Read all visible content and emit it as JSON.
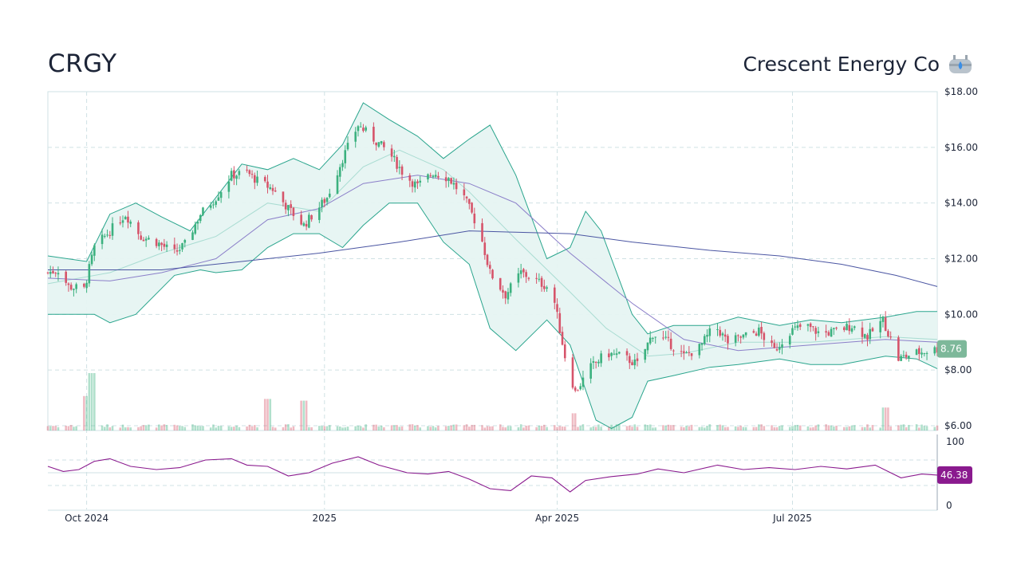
{
  "header": {
    "ticker": "CRGY",
    "company_name": "Crescent Energy Co",
    "company_icon": "oil-tank-flame-icon"
  },
  "colors": {
    "up": "#3cb17f",
    "down": "#d6546a",
    "band_line": "#2aa58d",
    "band_fill": "#e6f4f2",
    "sma_fast": "#a9dcd2",
    "sma_mid": "#8b7fc9",
    "sma_long": "#4a55a2",
    "rsi": "#8a1a8e",
    "grid": "#cfe1e4",
    "last_price_badge": "#7db89a",
    "rsi_badge": "#8a1a8e"
  },
  "chart_data": {
    "type": "candlestick",
    "title": "CRGY",
    "price_axis": {
      "ylim": [
        6,
        18
      ],
      "ticks": [
        "$18.00",
        "$16.00",
        "$14.00",
        "$12.00",
        "$10.00",
        "$8.00",
        "$6.00"
      ],
      "tick_values": [
        18,
        16,
        14,
        12,
        10,
        8,
        6
      ],
      "position": "right"
    },
    "x_axis": {
      "tick_labels": [
        "Oct 2024",
        "2025",
        "Apr 2025",
        "Jul 2025"
      ],
      "tick_dates": [
        "2024-10-01",
        "2025-01-01",
        "2025-04-01",
        "2025-07-01"
      ],
      "xlim": [
        "2024-09-16",
        "2025-08-26"
      ]
    },
    "grid": true,
    "last_price": "8.76",
    "close_path": [
      [
        "2024-09-16",
        11.5
      ],
      [
        "2024-09-20",
        11.6
      ],
      [
        "2024-09-24",
        11.0
      ],
      [
        "2024-09-30",
        10.9
      ],
      [
        "2024-10-04",
        12.4
      ],
      [
        "2024-10-10",
        13.0
      ],
      [
        "2024-10-16",
        13.6
      ],
      [
        "2024-10-22",
        12.8
      ],
      [
        "2024-10-28",
        12.6
      ],
      [
        "2024-11-04",
        12.2
      ],
      [
        "2024-11-08",
        12.5
      ],
      [
        "2024-11-14",
        13.6
      ],
      [
        "2024-11-20",
        14.2
      ],
      [
        "2024-11-26",
        15.0
      ],
      [
        "2024-12-02",
        15.1
      ],
      [
        "2024-12-06",
        14.8
      ],
      [
        "2024-12-12",
        14.5
      ],
      [
        "2024-12-18",
        13.8
      ],
      [
        "2024-12-24",
        13.2
      ],
      [
        "2025-01-02",
        14.2
      ],
      [
        "2025-01-08",
        15.6
      ],
      [
        "2025-01-14",
        16.8
      ],
      [
        "2025-01-20",
        16.3
      ],
      [
        "2025-01-26",
        15.8
      ],
      [
        "2025-02-01",
        15.0
      ],
      [
        "2025-02-06",
        14.6
      ],
      [
        "2025-02-12",
        15.1
      ],
      [
        "2025-02-18",
        14.9
      ],
      [
        "2025-02-24",
        14.2
      ],
      [
        "2025-03-02",
        13.0
      ],
      [
        "2025-03-06",
        11.5
      ],
      [
        "2025-03-12",
        10.7
      ],
      [
        "2025-03-18",
        11.5
      ],
      [
        "2025-03-24",
        11.2
      ],
      [
        "2025-03-30",
        10.9
      ],
      [
        "2025-04-04",
        8.5
      ],
      [
        "2025-04-08",
        7.2
      ],
      [
        "2025-04-14",
        8.1
      ],
      [
        "2025-04-20",
        8.6
      ],
      [
        "2025-04-26",
        8.5
      ],
      [
        "2025-05-02",
        8.2
      ],
      [
        "2025-05-08",
        9.3
      ],
      [
        "2025-05-14",
        9.0
      ],
      [
        "2025-05-20",
        8.5
      ],
      [
        "2025-05-26",
        8.8
      ],
      [
        "2025-06-01",
        9.6
      ],
      [
        "2025-06-06",
        9.0
      ],
      [
        "2025-06-12",
        9.2
      ],
      [
        "2025-06-18",
        9.4
      ],
      [
        "2025-06-24",
        8.7
      ],
      [
        "2025-06-30",
        9.4
      ],
      [
        "2025-07-06",
        9.6
      ],
      [
        "2025-07-12",
        9.3
      ],
      [
        "2025-07-18",
        9.4
      ],
      [
        "2025-07-24",
        9.6
      ],
      [
        "2025-07-30",
        9.2
      ],
      [
        "2025-08-05",
        9.8
      ],
      [
        "2025-08-11",
        8.4
      ],
      [
        "2025-08-17",
        8.6
      ],
      [
        "2025-08-26",
        8.76
      ]
    ],
    "bollinger_upper": [
      [
        "2024-09-16",
        12.1
      ],
      [
        "2024-10-01",
        11.9
      ],
      [
        "2024-10-10",
        13.6
      ],
      [
        "2024-10-20",
        14.0
      ],
      [
        "2024-10-30",
        13.5
      ],
      [
        "2024-11-10",
        13.0
      ],
      [
        "2024-11-20",
        14.2
      ],
      [
        "2024-11-30",
        15.4
      ],
      [
        "2024-12-10",
        15.2
      ],
      [
        "2024-12-20",
        15.6
      ],
      [
        "2024-12-30",
        15.2
      ],
      [
        "2025-01-08",
        16.1
      ],
      [
        "2025-01-16",
        17.6
      ],
      [
        "2025-01-26",
        17.0
      ],
      [
        "2025-02-06",
        16.4
      ],
      [
        "2025-02-16",
        15.6
      ],
      [
        "2025-02-26",
        16.3
      ],
      [
        "2025-03-06",
        16.8
      ],
      [
        "2025-03-16",
        15.0
      ],
      [
        "2025-03-28",
        12.0
      ],
      [
        "2025-04-06",
        12.4
      ],
      [
        "2025-04-12",
        13.7
      ],
      [
        "2025-04-18",
        13.0
      ],
      [
        "2025-04-30",
        10.0
      ],
      [
        "2025-05-06",
        9.3
      ],
      [
        "2025-05-16",
        9.6
      ],
      [
        "2025-05-30",
        9.6
      ],
      [
        "2025-06-10",
        9.9
      ],
      [
        "2025-06-26",
        9.6
      ],
      [
        "2025-07-08",
        9.8
      ],
      [
        "2025-07-20",
        9.7
      ],
      [
        "2025-08-06",
        9.9
      ],
      [
        "2025-08-18",
        10.1
      ],
      [
        "2025-08-26",
        10.1
      ]
    ],
    "bollinger_lower": [
      [
        "2024-09-16",
        10.0
      ],
      [
        "2024-10-04",
        10.0
      ],
      [
        "2024-10-10",
        9.7
      ],
      [
        "2024-10-20",
        10.0
      ],
      [
        "2024-11-04",
        11.4
      ],
      [
        "2024-11-14",
        11.6
      ],
      [
        "2024-11-20",
        11.5
      ],
      [
        "2024-11-30",
        11.6
      ],
      [
        "2024-12-10",
        12.4
      ],
      [
        "2024-12-20",
        12.9
      ],
      [
        "2024-12-30",
        12.9
      ],
      [
        "2025-01-08",
        12.4
      ],
      [
        "2025-01-16",
        13.2
      ],
      [
        "2025-01-26",
        14.0
      ],
      [
        "2025-02-06",
        14.0
      ],
      [
        "2025-02-16",
        12.6
      ],
      [
        "2025-02-26",
        11.8
      ],
      [
        "2025-03-06",
        9.5
      ],
      [
        "2025-03-16",
        8.7
      ],
      [
        "2025-03-28",
        9.8
      ],
      [
        "2025-04-06",
        8.9
      ],
      [
        "2025-04-16",
        6.2
      ],
      [
        "2025-04-22",
        5.9
      ],
      [
        "2025-04-30",
        6.3
      ],
      [
        "2025-05-06",
        7.6
      ],
      [
        "2025-05-16",
        7.8
      ],
      [
        "2025-05-30",
        8.1
      ],
      [
        "2025-06-10",
        8.2
      ],
      [
        "2025-06-26",
        8.4
      ],
      [
        "2025-07-08",
        8.2
      ],
      [
        "2025-07-20",
        8.2
      ],
      [
        "2025-08-06",
        8.5
      ],
      [
        "2025-08-18",
        8.4
      ],
      [
        "2025-08-26",
        8.05
      ]
    ],
    "sma_fast": [
      [
        "2024-09-16",
        11.1
      ],
      [
        "2024-10-10",
        11.5
      ],
      [
        "2024-10-30",
        12.2
      ],
      [
        "2024-11-20",
        12.8
      ],
      [
        "2024-12-10",
        14.0
      ],
      [
        "2024-12-30",
        13.7
      ],
      [
        "2025-01-16",
        15.3
      ],
      [
        "2025-01-30",
        15.9
      ],
      [
        "2025-02-16",
        15.2
      ],
      [
        "2025-02-26",
        14.4
      ],
      [
        "2025-03-16",
        12.7
      ],
      [
        "2025-04-06",
        10.8
      ],
      [
        "2025-04-20",
        9.5
      ],
      [
        "2025-05-06",
        8.5
      ],
      [
        "2025-05-20",
        8.6
      ],
      [
        "2025-06-10",
        9.0
      ],
      [
        "2025-07-08",
        9.0
      ],
      [
        "2025-08-06",
        9.2
      ],
      [
        "2025-08-26",
        9.1
      ]
    ],
    "sma_mid": [
      [
        "2024-09-16",
        11.3
      ],
      [
        "2024-10-10",
        11.2
      ],
      [
        "2024-10-30",
        11.5
      ],
      [
        "2024-11-20",
        12.0
      ],
      [
        "2024-12-10",
        13.4
      ],
      [
        "2024-12-30",
        13.8
      ],
      [
        "2025-01-16",
        14.7
      ],
      [
        "2025-02-06",
        15.0
      ],
      [
        "2025-02-26",
        14.7
      ],
      [
        "2025-03-16",
        14.0
      ],
      [
        "2025-04-06",
        12.2
      ],
      [
        "2025-04-30",
        10.4
      ],
      [
        "2025-05-20",
        9.1
      ],
      [
        "2025-06-10",
        8.7
      ],
      [
        "2025-07-08",
        8.9
      ],
      [
        "2025-08-06",
        9.1
      ],
      [
        "2025-08-26",
        9.0
      ]
    ],
    "sma_long": [
      [
        "2024-09-16",
        11.6
      ],
      [
        "2024-10-30",
        11.6
      ],
      [
        "2024-11-30",
        11.9
      ],
      [
        "2024-12-30",
        12.2
      ],
      [
        "2025-01-30",
        12.6
      ],
      [
        "2025-02-26",
        13.0
      ],
      [
        "2025-03-16",
        12.95
      ],
      [
        "2025-04-06",
        12.9
      ],
      [
        "2025-04-30",
        12.6
      ],
      [
        "2025-05-30",
        12.3
      ],
      [
        "2025-06-26",
        12.1
      ],
      [
        "2025-07-20",
        11.8
      ],
      [
        "2025-08-10",
        11.4
      ],
      [
        "2025-08-26",
        11.0
      ]
    ],
    "rsi": {
      "ylim": [
        0,
        100
      ],
      "ticks": [
        "100",
        "0"
      ],
      "tick_values": [
        100,
        0
      ],
      "guides": [
        70,
        50,
        30
      ],
      "last": "46.38",
      "values": [
        [
          "2024-09-16",
          60
        ],
        [
          "2024-09-22",
          52
        ],
        [
          "2024-09-28",
          55
        ],
        [
          "2024-10-04",
          68
        ],
        [
          "2024-10-10",
          72
        ],
        [
          "2024-10-18",
          60
        ],
        [
          "2024-10-28",
          55
        ],
        [
          "2024-11-06",
          58
        ],
        [
          "2024-11-16",
          70
        ],
        [
          "2024-11-26",
          72
        ],
        [
          "2024-12-02",
          62
        ],
        [
          "2024-12-10",
          60
        ],
        [
          "2024-12-18",
          45
        ],
        [
          "2024-12-26",
          50
        ],
        [
          "2025-01-04",
          65
        ],
        [
          "2025-01-14",
          75
        ],
        [
          "2025-01-22",
          62
        ],
        [
          "2025-02-02",
          50
        ],
        [
          "2025-02-10",
          48
        ],
        [
          "2025-02-18",
          52
        ],
        [
          "2025-02-26",
          40
        ],
        [
          "2025-03-06",
          25
        ],
        [
          "2025-03-14",
          22
        ],
        [
          "2025-03-22",
          45
        ],
        [
          "2025-03-30",
          42
        ],
        [
          "2025-04-06",
          20
        ],
        [
          "2025-04-12",
          38
        ],
        [
          "2025-04-22",
          44
        ],
        [
          "2025-05-02",
          48
        ],
        [
          "2025-05-10",
          56
        ],
        [
          "2025-05-20",
          50
        ],
        [
          "2025-06-02",
          62
        ],
        [
          "2025-06-12",
          55
        ],
        [
          "2025-06-22",
          58
        ],
        [
          "2025-07-02",
          55
        ],
        [
          "2025-07-12",
          60
        ],
        [
          "2025-07-22",
          56
        ],
        [
          "2025-08-02",
          62
        ],
        [
          "2025-08-12",
          42
        ],
        [
          "2025-08-20",
          48
        ],
        [
          "2025-08-26",
          46.38
        ]
      ]
    },
    "volume": {
      "description_free": true,
      "spikes": [
        [
          "2024-10-01",
          0.6
        ],
        [
          "2024-10-03",
          1.0
        ],
        [
          "2024-12-10",
          0.55
        ],
        [
          "2024-12-24",
          0.52
        ],
        [
          "2025-04-07",
          0.3
        ],
        [
          "2025-08-06",
          0.4
        ]
      ]
    }
  }
}
